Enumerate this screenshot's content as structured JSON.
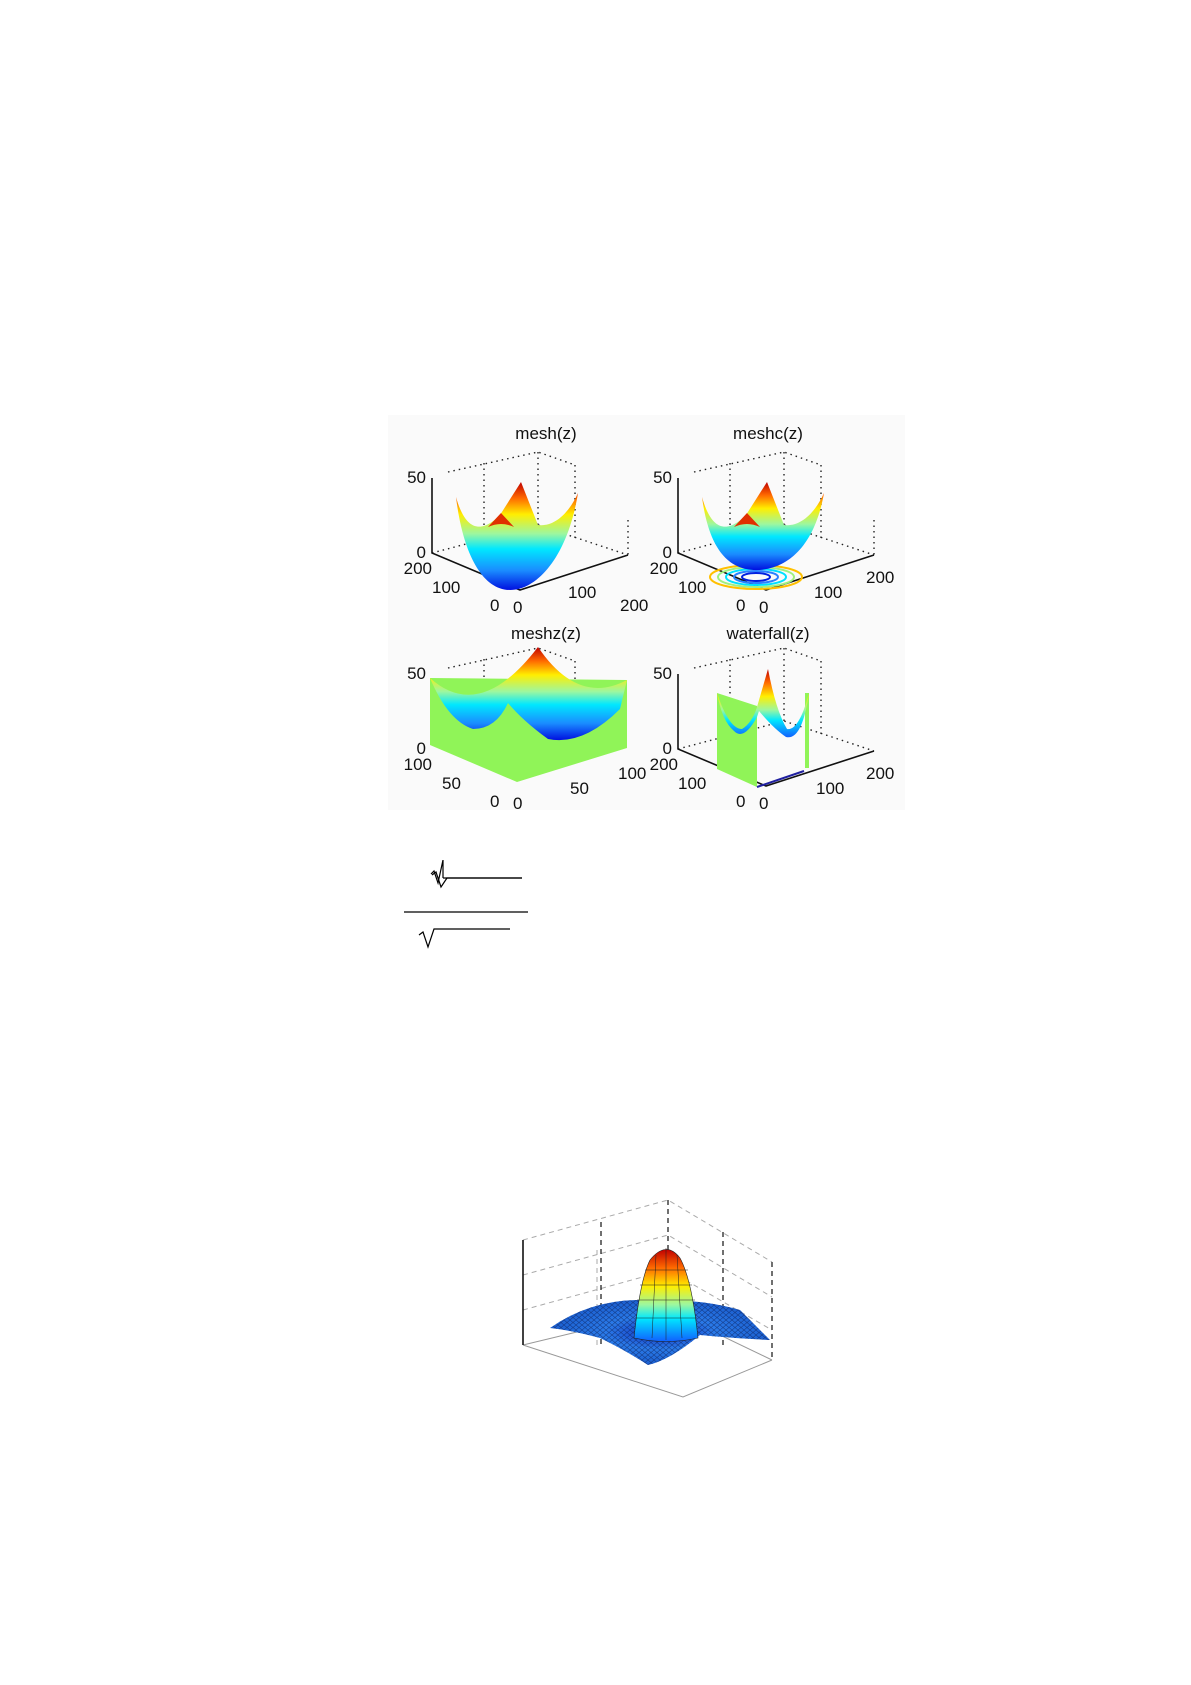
{
  "chart_data": [
    {
      "type": "surface",
      "title": "mesh(z)",
      "zlim": [
        0,
        50
      ],
      "z_ticks": [
        "50",
        "0"
      ],
      "y_ticks": [
        "200",
        "100",
        "0"
      ],
      "x_ticks": [
        "0",
        "100",
        "200"
      ]
    },
    {
      "type": "surface",
      "title": "meshc(z)",
      "zlim": [
        0,
        50
      ],
      "z_ticks": [
        "50",
        "0"
      ],
      "y_ticks": [
        "200",
        "100",
        "0"
      ],
      "x_ticks": [
        "0",
        "100",
        "200"
      ],
      "contour_on_base": true
    },
    {
      "type": "surface",
      "title": "meshz(z)",
      "zlim": [
        0,
        50
      ],
      "z_ticks": [
        "50",
        "0"
      ],
      "y_ticks": [
        "100",
        "50",
        "0"
      ],
      "x_ticks": [
        "0",
        "50",
        "100"
      ],
      "curtain_color": "#90f458"
    },
    {
      "type": "surface",
      "title": "waterfall(z)",
      "zlim": [
        0,
        50
      ],
      "z_ticks": [
        "50",
        "0"
      ],
      "y_ticks": [
        "200",
        "100",
        "0"
      ],
      "x_ticks": [
        "0",
        "100",
        "200"
      ],
      "curtain_color": "#90f458"
    },
    {
      "type": "surface",
      "title": "",
      "shape": "sombrero",
      "grid": true,
      "colormap": "jet"
    }
  ]
}
